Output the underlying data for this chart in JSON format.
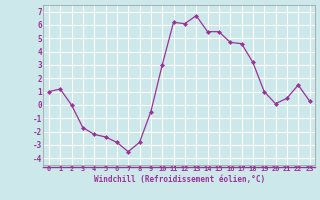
{
  "x": [
    0,
    1,
    2,
    3,
    4,
    5,
    6,
    7,
    8,
    9,
    10,
    11,
    12,
    13,
    14,
    15,
    16,
    17,
    18,
    19,
    20,
    21,
    22,
    23
  ],
  "y": [
    1.0,
    1.2,
    0.0,
    -1.7,
    -2.2,
    -2.4,
    -2.8,
    -3.5,
    -2.8,
    -0.5,
    3.0,
    6.2,
    6.1,
    6.7,
    5.5,
    5.5,
    4.7,
    4.6,
    3.2,
    1.0,
    0.1,
    0.5,
    1.5,
    0.3
  ],
  "line_color": "#993399",
  "marker": "D",
  "marker_size": 2,
  "bg_color": "#cde8ea",
  "grid_color": "#ffffff",
  "xlabel": "Windchill (Refroidissement éolien,°C)",
  "xlabel_color": "#993399",
  "tick_color": "#993399",
  "ylabel_ticks": [
    -4,
    -3,
    -2,
    -1,
    0,
    1,
    2,
    3,
    4,
    5,
    6,
    7
  ],
  "xlim": [
    -0.5,
    23.5
  ],
  "ylim": [
    -4.5,
    7.5
  ]
}
